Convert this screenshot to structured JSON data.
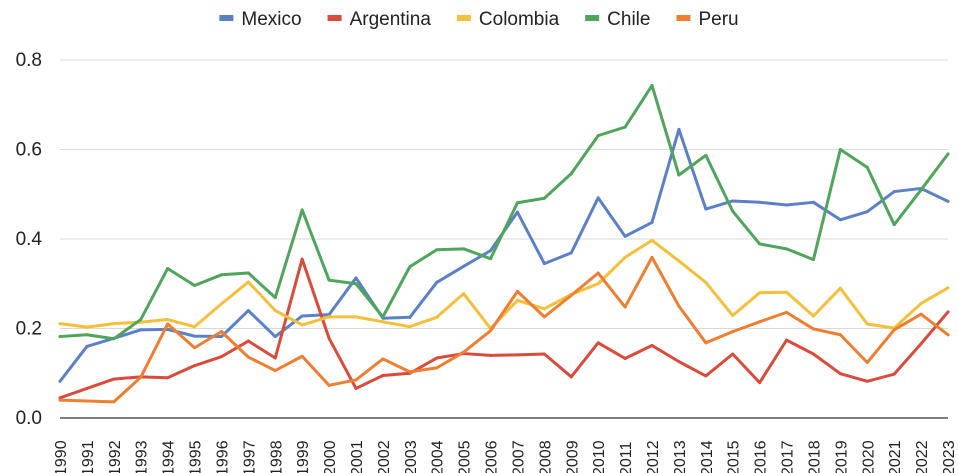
{
  "chart_data": {
    "type": "line",
    "title": "",
    "xlabel": "",
    "ylabel": "",
    "ylim": [
      0,
      0.8
    ],
    "yticks": [
      "0.0",
      "0.2",
      "0.4",
      "0.6",
      "0.8"
    ],
    "grid": true,
    "legend_position": "top",
    "categories": [
      "1990",
      "1991",
      "1992",
      "1993",
      "1994",
      "1995",
      "1996",
      "1997",
      "1998",
      "1999",
      "2000",
      "2001",
      "2002",
      "2003",
      "2004",
      "2005",
      "2006",
      "2007",
      "2008",
      "2009",
      "2010",
      "2011",
      "2012",
      "2013",
      "2014",
      "2015",
      "2016",
      "2017",
      "2018",
      "2019",
      "2020",
      "2021",
      "2022",
      "2023"
    ],
    "series": [
      {
        "name": "Mexico",
        "color": "#5b80c8",
        "values": [
          0.082,
          0.16,
          0.178,
          0.197,
          0.198,
          0.183,
          0.182,
          0.24,
          0.182,
          0.228,
          0.231,
          0.313,
          0.223,
          0.225,
          0.303,
          0.339,
          0.374,
          0.46,
          0.345,
          0.369,
          0.492,
          0.406,
          0.437,
          0.645,
          0.467,
          0.485,
          0.482,
          0.476,
          0.482,
          0.443,
          0.461,
          0.506,
          0.513,
          0.484
        ]
      },
      {
        "name": "Argentina",
        "color": "#d94b3a",
        "values": [
          0.045,
          0.066,
          0.087,
          0.092,
          0.09,
          0.117,
          0.137,
          0.172,
          0.134,
          0.355,
          0.178,
          0.066,
          0.095,
          0.1,
          0.134,
          0.144,
          0.14,
          0.141,
          0.143,
          0.092,
          0.168,
          0.133,
          0.162,
          0.126,
          0.094,
          0.143,
          0.079,
          0.174,
          0.143,
          0.099,
          0.082,
          0.098,
          0.166,
          0.237
        ]
      },
      {
        "name": "Colombia",
        "color": "#f4bf3a",
        "values": [
          0.211,
          0.203,
          0.211,
          0.214,
          0.22,
          0.204,
          0.255,
          0.304,
          0.24,
          0.208,
          0.226,
          0.226,
          0.215,
          0.204,
          0.225,
          0.278,
          0.2,
          0.263,
          0.244,
          0.276,
          0.3,
          0.359,
          0.397,
          0.351,
          0.303,
          0.229,
          0.28,
          0.281,
          0.228,
          0.29,
          0.21,
          0.201,
          0.256,
          0.291
        ]
      },
      {
        "name": "Chile",
        "color": "#4fa55a",
        "values": [
          0.182,
          0.186,
          0.177,
          0.22,
          0.334,
          0.296,
          0.32,
          0.324,
          0.269,
          0.465,
          0.308,
          0.3,
          0.226,
          0.338,
          0.376,
          0.378,
          0.356,
          0.481,
          0.491,
          0.546,
          0.631,
          0.65,
          0.743,
          0.543,
          0.587,
          0.462,
          0.389,
          0.378,
          0.354,
          0.6,
          0.56,
          0.432,
          0.51,
          0.59
        ]
      },
      {
        "name": "Peru",
        "color": "#ef7e31",
        "values": [
          0.04,
          0.038,
          0.036,
          0.091,
          0.21,
          0.157,
          0.193,
          0.136,
          0.106,
          0.138,
          0.073,
          0.085,
          0.132,
          0.103,
          0.112,
          0.147,
          0.195,
          0.283,
          0.226,
          0.274,
          0.324,
          0.248,
          0.359,
          0.25,
          0.168,
          0.193,
          0.215,
          0.236,
          0.199,
          0.186,
          0.124,
          0.197,
          0.232,
          0.186
        ]
      }
    ]
  }
}
